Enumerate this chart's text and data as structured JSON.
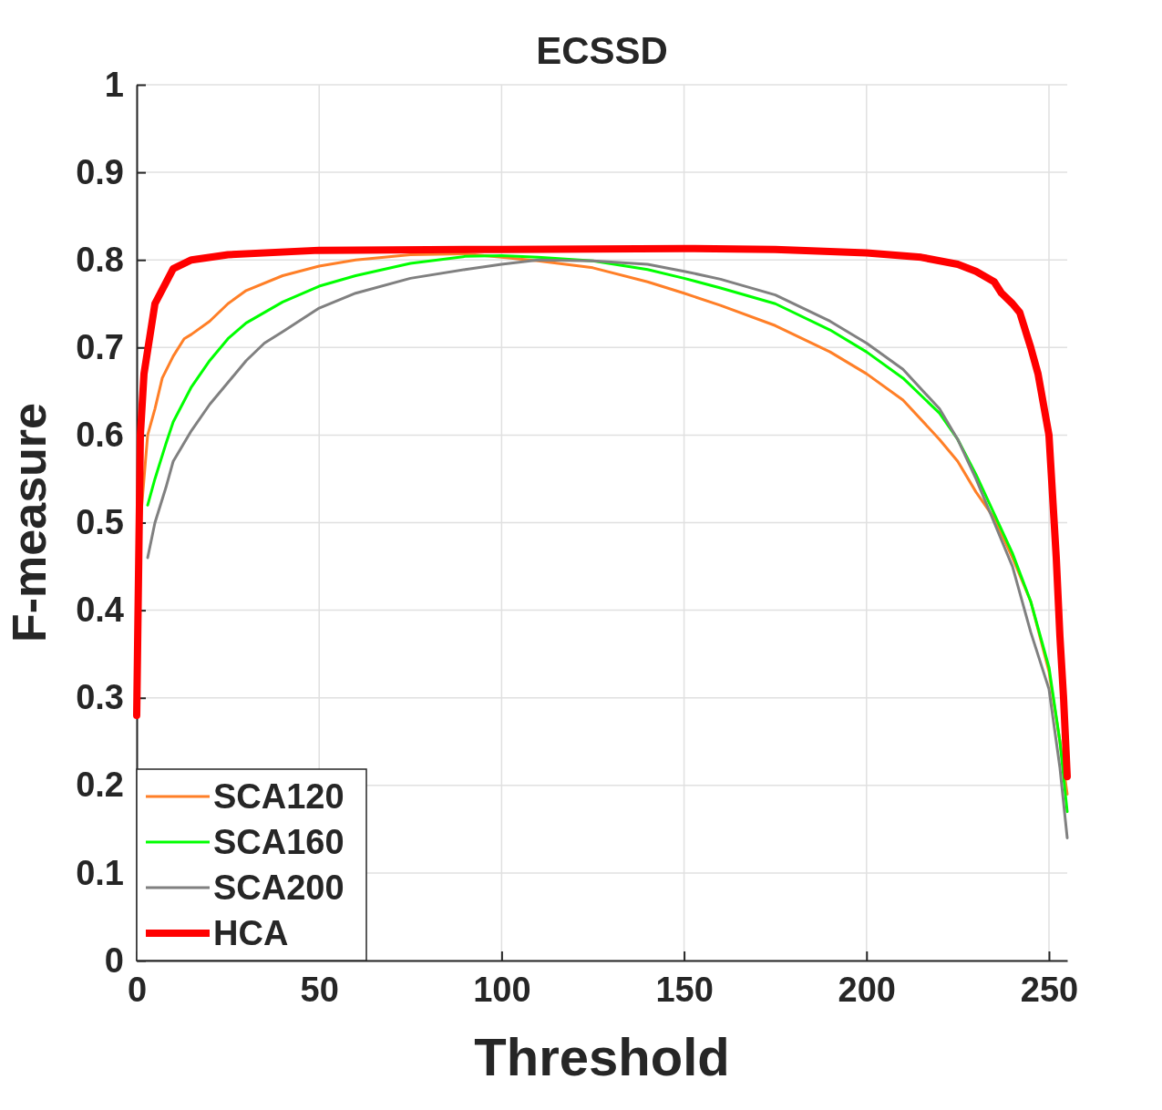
{
  "chart_data": {
    "type": "line",
    "title": "ECSSD",
    "xlabel": "Threshold",
    "ylabel": "F-measure",
    "xlim": [
      0,
      255
    ],
    "xticks": [
      0,
      50,
      100,
      150,
      200,
      250
    ],
    "ylim": [
      0,
      1
    ],
    "yticks": [
      0,
      0.1,
      0.2,
      0.3,
      0.4,
      0.5,
      0.6,
      0.7,
      0.8,
      0.9,
      1
    ],
    "grid": true,
    "legend": "bottom left",
    "marker": "none",
    "line_style": "solid",
    "series": [
      {
        "name": "SCA120",
        "color": "#ff7f27",
        "x": [
          0,
          1,
          3,
          5,
          7,
          10,
          13,
          15,
          20,
          25,
          30,
          40,
          50,
          60,
          75,
          90,
          100,
          110,
          125,
          140,
          150,
          160,
          175,
          190,
          200,
          210,
          220,
          225,
          230,
          235,
          240,
          245,
          250,
          253,
          255
        ],
        "values": [
          0.42,
          0.5,
          0.6,
          0.63,
          0.665,
          0.69,
          0.71,
          0.715,
          0.73,
          0.75,
          0.765,
          0.782,
          0.793,
          0.8,
          0.806,
          0.807,
          0.803,
          0.799,
          0.791,
          0.775,
          0.762,
          0.748,
          0.725,
          0.695,
          0.67,
          0.64,
          0.595,
          0.57,
          0.535,
          0.505,
          0.46,
          0.41,
          0.33,
          0.25,
          0.19
        ]
      },
      {
        "name": "SCA160",
        "color": "#00ff00",
        "x": [
          3,
          5,
          8,
          10,
          15,
          20,
          25,
          30,
          40,
          50,
          60,
          75,
          90,
          100,
          110,
          125,
          140,
          150,
          160,
          175,
          190,
          200,
          210,
          220,
          225,
          230,
          235,
          240,
          245,
          250,
          253,
          255
        ],
        "values": [
          0.52,
          0.55,
          0.59,
          0.615,
          0.655,
          0.685,
          0.71,
          0.728,
          0.752,
          0.77,
          0.782,
          0.796,
          0.804,
          0.805,
          0.803,
          0.799,
          0.789,
          0.779,
          0.768,
          0.75,
          0.72,
          0.695,
          0.665,
          0.625,
          0.595,
          0.555,
          0.51,
          0.465,
          0.41,
          0.335,
          0.25,
          0.17
        ]
      },
      {
        "name": "SCA200",
        "color": "#808080",
        "x": [
          3,
          5,
          8,
          10,
          15,
          20,
          25,
          30,
          35,
          40,
          50,
          60,
          75,
          90,
          100,
          110,
          125,
          140,
          150,
          160,
          175,
          190,
          200,
          210,
          220,
          225,
          230,
          235,
          240,
          245,
          250,
          253,
          255
        ],
        "values": [
          0.46,
          0.5,
          0.54,
          0.57,
          0.605,
          0.635,
          0.66,
          0.685,
          0.705,
          0.718,
          0.745,
          0.762,
          0.779,
          0.789,
          0.795,
          0.8,
          0.799,
          0.795,
          0.787,
          0.778,
          0.76,
          0.73,
          0.705,
          0.675,
          0.63,
          0.595,
          0.55,
          0.5,
          0.45,
          0.375,
          0.31,
          0.22,
          0.14
        ]
      },
      {
        "name": "HCA",
        "color": "#ff0000",
        "x": [
          0,
          1,
          2,
          5,
          10,
          15,
          25,
          50,
          100,
          150,
          175,
          200,
          215,
          225,
          230,
          235,
          237,
          240,
          242,
          245,
          247,
          250,
          252,
          253,
          254,
          255
        ],
        "values": [
          0.28,
          0.6,
          0.67,
          0.75,
          0.79,
          0.8,
          0.806,
          0.811,
          0.812,
          0.813,
          0.812,
          0.808,
          0.803,
          0.795,
          0.787,
          0.775,
          0.762,
          0.75,
          0.74,
          0.7,
          0.67,
          0.6,
          0.46,
          0.37,
          0.3,
          0.21
        ]
      }
    ]
  }
}
